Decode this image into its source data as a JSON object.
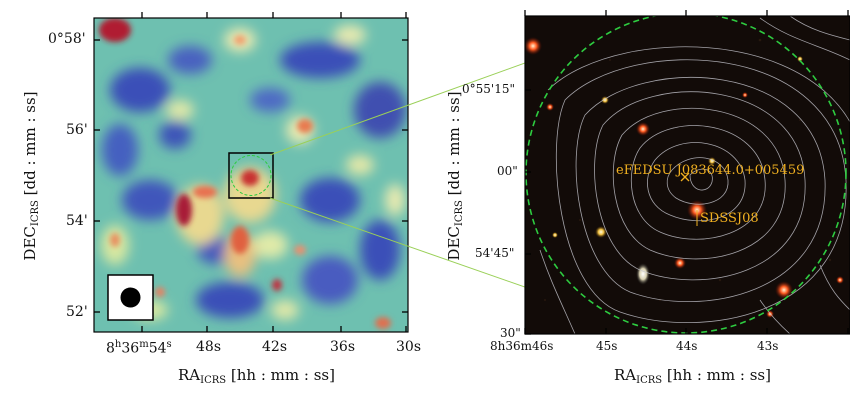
{
  "left_panel": {
    "y_ticks": [
      "0°58'",
      "56'",
      "54'",
      "52'"
    ],
    "x_ticks_main": [
      "8",
      "36",
      "54"
    ],
    "x_ticks": [
      "48s",
      "42s",
      "36s",
      "30s"
    ],
    "x_label_main": "RA",
    "x_label_sub": "ICRS",
    "x_label_rest": " [hh : mm : ss]",
    "y_label_main": "DEC",
    "y_label_sub": "ICRS",
    "y_label_rest": " [dd : mm : ss]"
  },
  "right_panel": {
    "y_ticks": [
      "0°55'15\"",
      "00\"",
      "54'45\"",
      "30\""
    ],
    "x_ticks": [
      "8h36m46s",
      "45s",
      "44s",
      "43s"
    ],
    "source_label": "eFEDSU J083644.0+005459",
    "counterpart_label": "SDSSJ08",
    "x_label_main": "RA",
    "x_label_sub": "ICRS",
    "x_label_rest": " [hh : mm : ss]",
    "y_label_main": "DEC",
    "y_label_sub": "ICRS",
    "y_label_rest": " [dd : mm : ss]"
  },
  "colors": {
    "map_low": "#3b4fb8",
    "map_mid": "#6ec0b0",
    "map_high": "#e8eab0",
    "map_peak": "#b01a30",
    "zoom_lines": "#9ad058",
    "circle": "#2ecc40",
    "label": "#f0b020",
    "contour": "#c8c8d0"
  }
}
